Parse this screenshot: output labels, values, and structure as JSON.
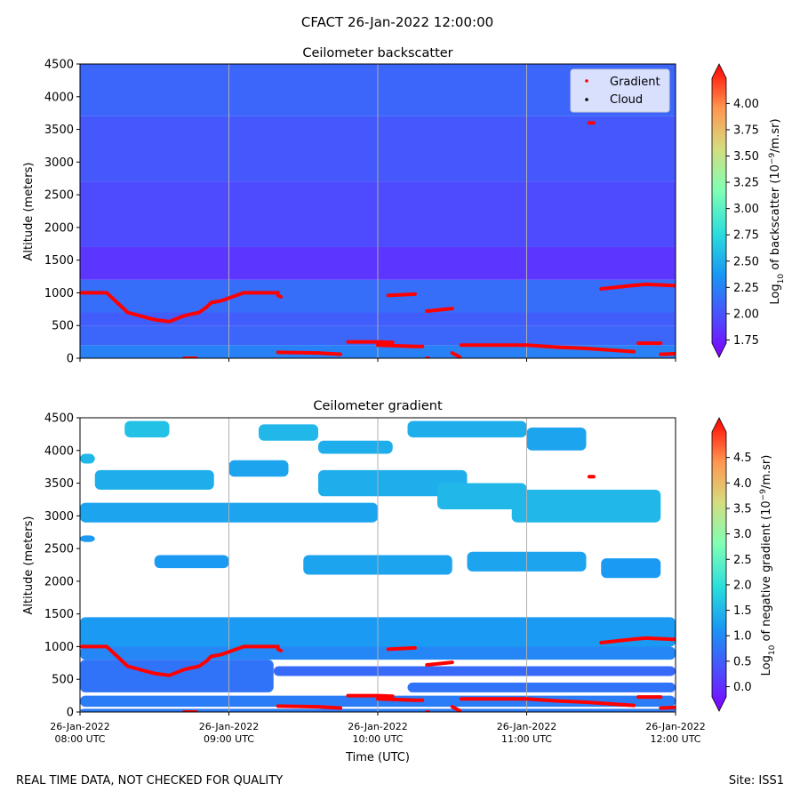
{
  "suptitle": "CFACT 26-Jan-2022 12:00:00",
  "footer_left": "REAL TIME DATA, NOT CHECKED FOR QUALITY",
  "footer_right": "Site: ISS1",
  "colors": {
    "gradient_marker": "#ff0000",
    "cloud_marker": "#000000",
    "gridline": "#b0b0b0"
  },
  "chart_data": [
    {
      "type": "heatmap",
      "title": "Ceilometer backscatter",
      "ylabel": "Altitude (meters)",
      "xlabel": "",
      "ylim": [
        0,
        4500
      ],
      "yticks": [
        0,
        500,
        1000,
        1500,
        2000,
        2500,
        3000,
        3500,
        4000,
        4500
      ],
      "xlim_hours": [
        8,
        12
      ],
      "xticks_hours": [
        8,
        9,
        10,
        11,
        12
      ],
      "xtick_labels": [
        [
          "26-Jan-2022",
          "08:00 UTC"
        ],
        [
          "26-Jan-2022",
          "09:00 UTC"
        ],
        [
          "26-Jan-2022",
          "10:00 UTC"
        ],
        [
          "26-Jan-2022",
          "11:00 UTC"
        ],
        [
          "26-Jan-2022",
          "12:00 UTC"
        ]
      ],
      "show_xtick_labels": false,
      "grid_x": true,
      "legend": {
        "position": "top-right",
        "entries": [
          {
            "label": "Gradient",
            "color": "#ff0000"
          },
          {
            "label": "Cloud",
            "color": "#000000"
          }
        ]
      },
      "colorbar": {
        "label_parts": [
          "Log",
          "10",
          " of backscatter (10",
          "−9",
          "/m.sr)"
        ],
        "min": 1.72,
        "max": 4.24,
        "ticks": [
          "1.75",
          "2.00",
          "2.25",
          "2.50",
          "2.75",
          "3.00",
          "3.25",
          "3.50",
          "3.75",
          "4.00"
        ],
        "extend": "both"
      },
      "field_bands": [
        {
          "alt_range": [
            0,
            200
          ],
          "value": 2.32
        },
        {
          "alt_range": [
            200,
            500
          ],
          "value": 2.18
        },
        {
          "alt_range": [
            500,
            700
          ],
          "value": 2.14
        },
        {
          "alt_range": [
            700,
            1200
          ],
          "value": 2.22
        },
        {
          "alt_range": [
            1200,
            1700
          ],
          "value": 1.96
        },
        {
          "alt_range": [
            1700,
            2700
          ],
          "value": 2.05
        },
        {
          "alt_range": [
            2700,
            3700
          ],
          "value": 2.12
        },
        {
          "alt_range": [
            3700,
            4500
          ],
          "value": 2.18
        }
      ],
      "gradient_segments": [
        {
          "t": [
            8.0,
            8.18,
            8.25,
            8.32,
            8.45,
            8.5,
            8.6,
            8.7,
            8.8,
            8.85,
            8.88,
            8.95,
            9.1,
            9.25,
            9.33
          ],
          "alt": [
            1000,
            1000,
            850,
            700,
            620,
            590,
            560,
            650,
            700,
            780,
            850,
            880,
            1000,
            1000,
            1000
          ]
        },
        {
          "t": [
            9.33,
            9.35
          ],
          "alt": [
            960,
            940
          ]
        },
        {
          "t": [
            9.33,
            9.6,
            9.75
          ],
          "alt": [
            90,
            80,
            60
          ]
        },
        {
          "t": [
            9.8,
            10.0,
            10.1
          ],
          "alt": [
            250,
            250,
            240
          ]
        },
        {
          "t": [
            10.0,
            10.25,
            10.3
          ],
          "alt": [
            200,
            180,
            180
          ]
        },
        {
          "t": [
            10.07,
            10.25
          ],
          "alt": [
            960,
            980
          ]
        },
        {
          "t": [
            10.33,
            10.5
          ],
          "alt": [
            720,
            760
          ]
        },
        {
          "t": [
            10.5,
            10.55
          ],
          "alt": [
            80,
            20
          ]
        },
        {
          "t": [
            10.56,
            10.85,
            11.0,
            11.2,
            11.4,
            11.6,
            11.72
          ],
          "alt": [
            200,
            200,
            200,
            170,
            150,
            120,
            100
          ]
        },
        {
          "t": [
            11.75,
            11.9
          ],
          "alt": [
            230,
            230
          ]
        },
        {
          "t": [
            11.9,
            12.0
          ],
          "alt": [
            60,
            70
          ]
        },
        {
          "t": [
            11.5,
            11.7,
            11.8,
            12.0
          ],
          "alt": [
            1060,
            1110,
            1130,
            1110
          ]
        },
        {
          "t": [
            11.42,
            11.45
          ],
          "alt": [
            3600,
            3600
          ]
        },
        {
          "t": [
            8.7,
            8.78
          ],
          "alt": [
            0,
            0
          ]
        },
        {
          "t": [
            10.33,
            10.34
          ],
          "alt": [
            0,
            0
          ]
        }
      ]
    },
    {
      "type": "heatmap",
      "title": "Ceilometer gradient",
      "ylabel": "Altitude (meters)",
      "xlabel": "Time (UTC)",
      "ylim": [
        0,
        4500
      ],
      "yticks": [
        0,
        500,
        1000,
        1500,
        2000,
        2500,
        3000,
        3500,
        4000,
        4500
      ],
      "xlim_hours": [
        8,
        12
      ],
      "xticks_hours": [
        8,
        9,
        10,
        11,
        12
      ],
      "xtick_labels": [
        [
          "26-Jan-2022",
          "08:00 UTC"
        ],
        [
          "26-Jan-2022",
          "09:00 UTC"
        ],
        [
          "26-Jan-2022",
          "10:00 UTC"
        ],
        [
          "26-Jan-2022",
          "11:00 UTC"
        ],
        [
          "26-Jan-2022",
          "12:00 UTC"
        ]
      ],
      "show_xtick_labels": true,
      "grid_x": true,
      "colorbar": {
        "label_parts": [
          "Log",
          "10",
          " of negative gradient (10",
          "−9",
          "/m.sr)"
        ],
        "min": -0.2,
        "max": 5.0,
        "ticks": [
          "0.0",
          "0.5",
          "1.0",
          "1.5",
          "2.0",
          "2.5",
          "3.0",
          "3.5",
          "4.0",
          "4.5"
        ],
        "extend": "both"
      },
      "field_patches": [
        {
          "t": [
            8.0,
            12.0
          ],
          "alt": [
            1000,
            1450
          ],
          "value": 1.3
        },
        {
          "t": [
            8.0,
            12.0
          ],
          "alt": [
            800,
            1000
          ],
          "value": 1.1
        },
        {
          "t": [
            8.0,
            9.3
          ],
          "alt": [
            300,
            800
          ],
          "value": 0.9
        },
        {
          "t": [
            9.3,
            12.0
          ],
          "alt": [
            550,
            700
          ],
          "value": 0.8
        },
        {
          "t": [
            10.2,
            12.0
          ],
          "alt": [
            300,
            450
          ],
          "value": 0.9
        },
        {
          "t": [
            8.0,
            12.0
          ],
          "alt": [
            80,
            250
          ],
          "value": 1.0
        },
        {
          "t": [
            8.0,
            12.0
          ],
          "alt": [
            0,
            50
          ],
          "value": 1.0
        },
        {
          "t": [
            8.0,
            10.0
          ],
          "alt": [
            2900,
            3200
          ],
          "value": 1.4
        },
        {
          "t": [
            8.1,
            8.9
          ],
          "alt": [
            3400,
            3700
          ],
          "value": 1.5
        },
        {
          "t": [
            9.0,
            9.4
          ],
          "alt": [
            3600,
            3850
          ],
          "value": 1.4
        },
        {
          "t": [
            9.6,
            10.6
          ],
          "alt": [
            3300,
            3700
          ],
          "value": 1.5
        },
        {
          "t": [
            10.4,
            11.0
          ],
          "alt": [
            3100,
            3500
          ],
          "value": 1.6
        },
        {
          "t": [
            10.9,
            11.9
          ],
          "alt": [
            2900,
            3400
          ],
          "value": 1.6
        },
        {
          "t": [
            8.3,
            8.6
          ],
          "alt": [
            4200,
            4450
          ],
          "value": 1.7
        },
        {
          "t": [
            9.2,
            9.6
          ],
          "alt": [
            4150,
            4400
          ],
          "value": 1.6
        },
        {
          "t": [
            10.2,
            11.0
          ],
          "alt": [
            4200,
            4450
          ],
          "value": 1.5
        },
        {
          "t": [
            11.0,
            11.4
          ],
          "alt": [
            4000,
            4350
          ],
          "value": 1.4
        },
        {
          "t": [
            9.6,
            10.1
          ],
          "alt": [
            3950,
            4150
          ],
          "value": 1.5
        },
        {
          "t": [
            8.5,
            9.0
          ],
          "alt": [
            2200,
            2400
          ],
          "value": 1.3
        },
        {
          "t": [
            9.5,
            10.5
          ],
          "alt": [
            2100,
            2400
          ],
          "value": 1.4
        },
        {
          "t": [
            10.6,
            11.4
          ],
          "alt": [
            2150,
            2450
          ],
          "value": 1.4
        },
        {
          "t": [
            11.5,
            11.9
          ],
          "alt": [
            2050,
            2350
          ],
          "value": 1.3
        },
        {
          "t": [
            8.0,
            8.1
          ],
          "alt": [
            3800,
            3950
          ],
          "value": 1.6
        },
        {
          "t": [
            8.0,
            8.1
          ],
          "alt": [
            2600,
            2700
          ],
          "value": 1.3
        }
      ],
      "gradient_segments_same_as_top": true
    }
  ]
}
